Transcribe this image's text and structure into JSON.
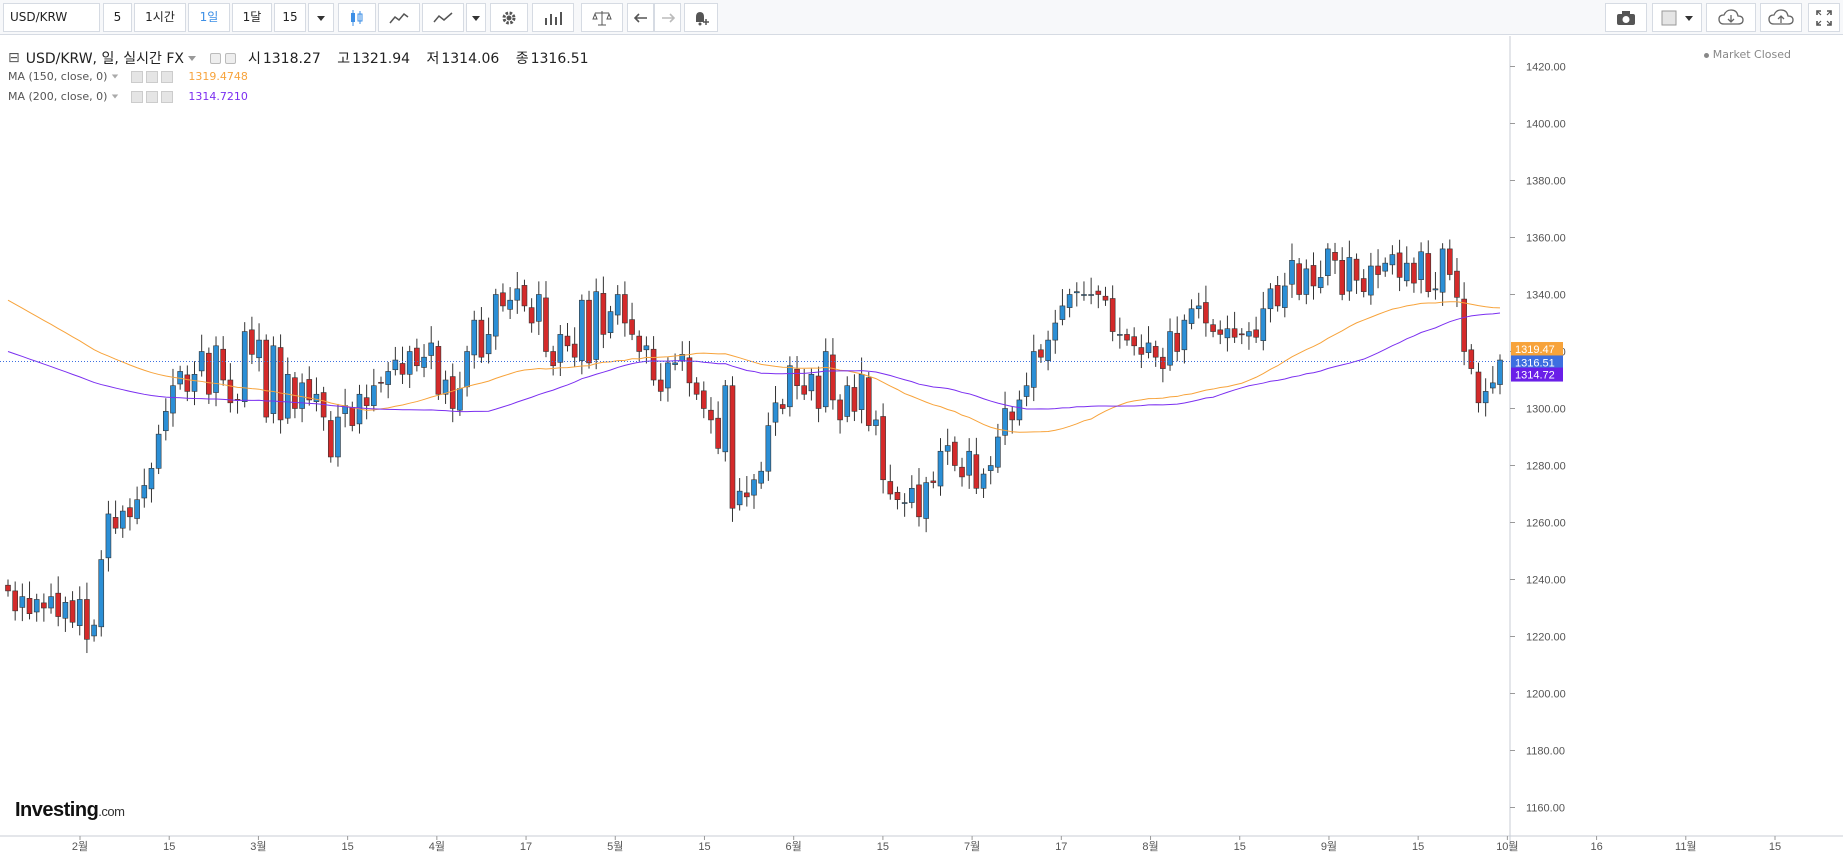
{
  "toolbar": {
    "symbol": "USD/KRW",
    "intervals": [
      "5",
      "1시간",
      "1일",
      "1달",
      "15"
    ],
    "active_interval": "1일"
  },
  "legend": {
    "title": "USD/KRW, 일, 실시간 FX",
    "open_label": "시",
    "open": "1318.27",
    "high_label": "고",
    "high": "1321.94",
    "low_label": "저",
    "low": "1314.06",
    "close_label": "종",
    "close": "1316.51"
  },
  "ma150": {
    "label": "MA (150, close, 0)",
    "value": "1319.4748",
    "color": "#f7a33b"
  },
  "ma200": {
    "label": "MA (200, close, 0)",
    "value": "1314.7210",
    "color": "#7b2ff0"
  },
  "status": "Market Closed",
  "logo": {
    "main": "Investing",
    "suffix": ".com"
  },
  "colors": {
    "up": "#2b8fd6",
    "down": "#d42a2a",
    "grid": "#eceef1",
    "axis_text": "#555"
  },
  "chart_data": {
    "type": "candlestick",
    "y_ticks": [
      "1160.00",
      "1180.00",
      "1200.00",
      "1220.00",
      "1240.00",
      "1260.00",
      "1280.00",
      "1300.00",
      "1320.00",
      "1340.00",
      "1360.00",
      "1380.00",
      "1400.00",
      "1420.00"
    ],
    "ylim": [
      1150,
      1430
    ],
    "x_ticks": [
      "2월",
      "15",
      "3월",
      "15",
      "4월",
      "17",
      "5월",
      "15",
      "6월",
      "15",
      "7월",
      "17",
      "8월",
      "15",
      "9월",
      "15",
      "10월",
      "16",
      "11월",
      "15"
    ],
    "price_labels": [
      {
        "value": "1319.47",
        "y": 1319.47,
        "color": "#f7a33b"
      },
      {
        "value": "1316.51",
        "y": 1316.51,
        "color": "#3d6fe0"
      },
      {
        "value": "1314.72",
        "y": 1314.72,
        "color": "#6a1fe8"
      }
    ],
    "current_price": 1316.51,
    "closes": [
      1236,
      1229,
      1234,
      1228,
      1233,
      1230,
      1234,
      1227,
      1232,
      1225,
      1233,
      1219,
      1224,
      1247,
      1263,
      1258,
      1264,
      1262,
      1268,
      1273,
      1279,
      1291,
      1299,
      1308,
      1313,
      1306,
      1312,
      1320,
      1305,
      1322,
      1310,
      1302,
      1303,
      1327,
      1319,
      1324,
      1297,
      1322,
      1296,
      1312,
      1300,
      1309,
      1303,
      1305,
      1297,
      1283,
      1297,
      1301,
      1294,
      1305,
      1301,
      1308,
      1309,
      1313,
      1317,
      1312,
      1320,
      1315,
      1318,
      1323,
      1305,
      1310,
      1300,
      1307,
      1320,
      1331,
      1318,
      1326,
      1340,
      1336,
      1338,
      1342,
      1336,
      1330,
      1340,
      1320,
      1315,
      1326,
      1322,
      1318,
      1338,
      1316,
      1341,
      1326,
      1334,
      1340,
      1330,
      1326,
      1320,
      1322,
      1310,
      1306,
      1316,
      1316,
      1319,
      1309,
      1305,
      1300,
      1296,
      1286,
      1308,
      1265,
      1271,
      1269,
      1275,
      1278,
      1294,
      1302,
      1300,
      1315,
      1308,
      1305,
      1312,
      1300,
      1320,
      1303,
      1296,
      1308,
      1299,
      1312,
      1294,
      1296,
      1275,
      1270,
      1268,
      1267,
      1272,
      1262,
      1274,
      1274,
      1285,
      1287,
      1280,
      1276,
      1285,
      1272,
      1277,
      1280,
      1290,
      1300,
      1296,
      1303,
      1308,
      1320,
      1318,
      1324,
      1330,
      1336,
      1340,
      1341,
      1340,
      1340,
      1340,
      1338,
      1327,
      1326,
      1324,
      1322,
      1319,
      1323,
      1318,
      1314,
      1327,
      1320,
      1331,
      1335,
      1336,
      1330,
      1327,
      1326,
      1328,
      1325,
      1326,
      1327,
      1325,
      1335,
      1342,
      1336,
      1343,
      1352,
      1340,
      1349,
      1343,
      1346,
      1356,
      1352,
      1340,
      1353,
      1345,
      1341,
      1350,
      1347,
      1351,
      1354,
      1346,
      1351,
      1344,
      1355,
      1341,
      1342,
      1356,
      1347,
      1339,
      1320,
      1314,
      1302,
      1306,
      1309,
      1317
    ]
  }
}
